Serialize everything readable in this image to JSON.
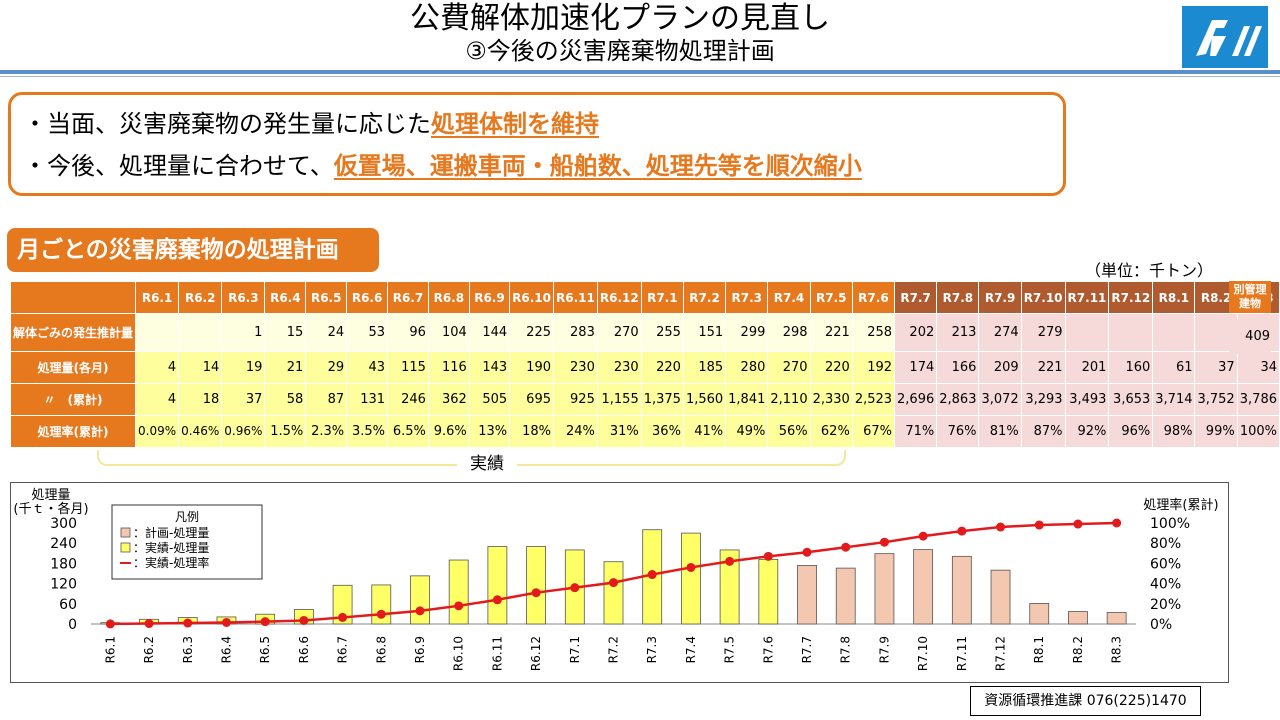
{
  "header": {
    "title": "公費解体加速化プランの見直し",
    "subtitle": "③今後の災害廃棄物処理計画"
  },
  "summary": {
    "line1_prefix": "・当面、災害廃棄物の発生量に応じた",
    "line1_highlight": "処理体制を維持",
    "line2_prefix": "・今後、処理量に合わせて、",
    "line2_highlight": "仮置場、運搬車両・船舶数、処理先等を順次縮小"
  },
  "section_title": "月ごとの災害廃棄物の処理計画",
  "unit_label": "（単位：千トン）",
  "table": {
    "months": [
      "R6.1",
      "R6.2",
      "R6.3",
      "R6.4",
      "R6.5",
      "R6.6",
      "R6.7",
      "R6.8",
      "R6.9",
      "R6.10",
      "R6.11",
      "R6.12",
      "R7.1",
      "R7.2",
      "R7.3",
      "R7.4",
      "R7.5",
      "R7.6",
      "R7.7",
      "R7.8",
      "R7.9",
      "R7.10",
      "R7.11",
      "R7.12",
      "R8.1",
      "R8.2",
      "R8.3"
    ],
    "row_labels": [
      "解体ごみの発生推計量",
      "処理量(各月)",
      "〃　(累計)",
      "処理率(累計)"
    ],
    "generation": [
      "",
      "",
      "1",
      "15",
      "24",
      "53",
      "96",
      "104",
      "144",
      "225",
      "283",
      "270",
      "255",
      "151",
      "299",
      "298",
      "221",
      "258",
      "202",
      "213",
      "274",
      "279",
      "",
      "",
      "",
      "",
      ""
    ],
    "monthly": [
      "4",
      "14",
      "19",
      "21",
      "29",
      "43",
      "115",
      "116",
      "143",
      "190",
      "230",
      "230",
      "220",
      "185",
      "280",
      "270",
      "220",
      "192",
      "174",
      "166",
      "209",
      "221",
      "201",
      "160",
      "61",
      "37",
      "34"
    ],
    "cumulative": [
      "4",
      "18",
      "37",
      "58",
      "87",
      "131",
      "246",
      "362",
      "505",
      "695",
      "925",
      "1,155",
      "1,375",
      "1,560",
      "1,841",
      "2,110",
      "2,330",
      "2,523",
      "2,696",
      "2,863",
      "3,072",
      "3,293",
      "3,493",
      "3,653",
      "3,714",
      "3,752",
      "3,786"
    ],
    "rate": [
      "0.09%",
      "0.46%",
      "0.96%",
      "1.5%",
      "2.3%",
      "3.5%",
      "6.5%",
      "9.6%",
      "13%",
      "18%",
      "24%",
      "31%",
      "36%",
      "41%",
      "49%",
      "56%",
      "62%",
      "67%",
      "71%",
      "76%",
      "81%",
      "87%",
      "92%",
      "96%",
      "98%",
      "99%",
      "100%"
    ],
    "actual_months": 18,
    "separate_header": "別管理建物",
    "separate_value": "409",
    "actual_label": "実績"
  },
  "colors": {
    "accent": "#e6781e",
    "plan_header": "#b05a2f",
    "actual_cell": "#fefe9c",
    "plan_cell": "#f6dada",
    "plan_bar": "#f4c7b0",
    "actual_bar": "#ffff66",
    "rate_line": "#e31a1c",
    "logo": "#1c8ad0"
  },
  "chart_data": {
    "type": "bar",
    "categories": [
      "R6.1",
      "R6.2",
      "R6.3",
      "R6.4",
      "R6.5",
      "R6.6",
      "R6.7",
      "R6.8",
      "R6.9",
      "R6.10",
      "R6.11",
      "R6.12",
      "R7.1",
      "R7.2",
      "R7.3",
      "R7.4",
      "R7.5",
      "R7.6",
      "R7.7",
      "R7.8",
      "R7.9",
      "R7.10",
      "R7.11",
      "R7.12",
      "R8.1",
      "R8.2",
      "R8.3"
    ],
    "series": [
      {
        "name": "実績-処理量",
        "type": "bar",
        "values": [
          4,
          14,
          19,
          21,
          29,
          43,
          115,
          116,
          143,
          190,
          230,
          230,
          220,
          185,
          280,
          270,
          220,
          192,
          null,
          null,
          null,
          null,
          null,
          null,
          null,
          null,
          null
        ]
      },
      {
        "name": "計画-処理量",
        "type": "bar",
        "values": [
          null,
          null,
          null,
          null,
          null,
          null,
          null,
          null,
          null,
          null,
          null,
          null,
          null,
          null,
          null,
          null,
          null,
          null,
          174,
          166,
          209,
          221,
          201,
          160,
          61,
          37,
          34
        ]
      },
      {
        "name": "実績-処理率",
        "type": "line",
        "axis": "right",
        "values": [
          0.09,
          0.46,
          0.96,
          1.5,
          2.3,
          3.5,
          6.5,
          9.6,
          13,
          18,
          24,
          31,
          36,
          41,
          49,
          56,
          62,
          67,
          71,
          76,
          81,
          87,
          92,
          96,
          98,
          99,
          100
        ]
      }
    ],
    "ylabel": "処理量\n(千ｔ・各月)",
    "y2label": "処理率(累計)",
    "ylim": [
      0,
      300
    ],
    "yticks": [
      0,
      60,
      120,
      180,
      240,
      300
    ],
    "y2lim": [
      0,
      100
    ],
    "y2ticks": [
      "0%",
      "20%",
      "40%",
      "60%",
      "80%",
      "100%"
    ],
    "legend": {
      "title": "凡例",
      "items": [
        "：計画-処理量",
        "：実績-処理量",
        "：実績-処理率"
      ],
      "position": "top-left"
    },
    "grid": false
  },
  "contact": "資源循環推進課 076(225)1470"
}
